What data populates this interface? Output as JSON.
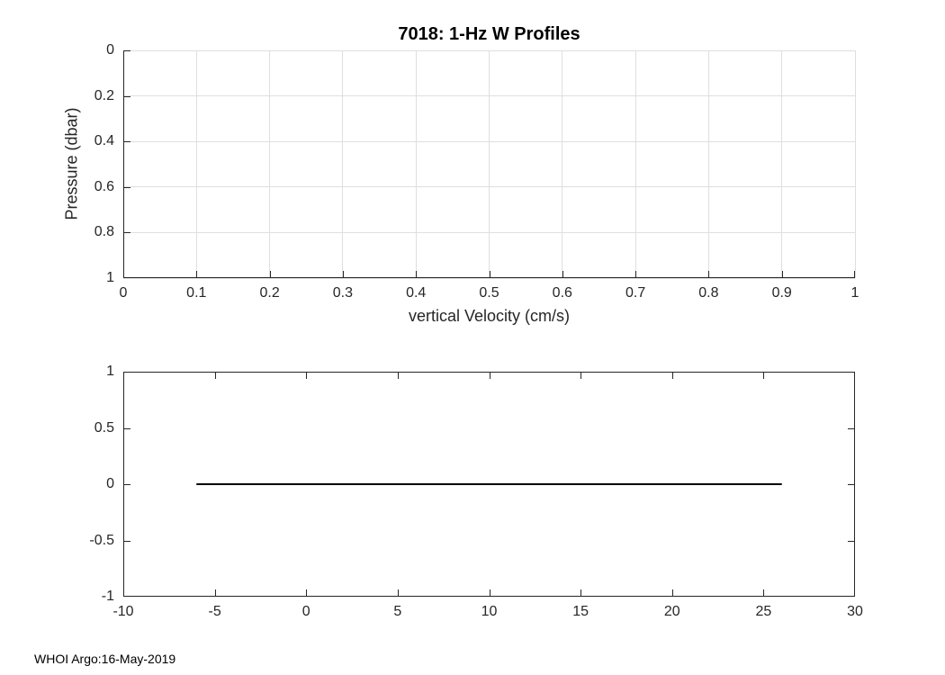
{
  "figure": {
    "credit": "WHOI Argo:16-May-2019",
    "colors": {
      "background": "#ffffff",
      "axis": "#262626",
      "grid": "#dfdfdf",
      "line": "#000000",
      "title": "#000000"
    }
  },
  "chart_data": [
    {
      "type": "line",
      "title": "7018: 1-Hz W Profiles",
      "xlabel": "vertical Velocity (cm/s)",
      "ylabel": "Pressure (dbar)",
      "xlim": [
        0,
        1
      ],
      "ylim": [
        0,
        1
      ],
      "y_axis_reversed": true,
      "x_ticks": [
        0,
        0.1,
        0.2,
        0.3,
        0.4,
        0.5,
        0.6,
        0.7,
        0.8,
        0.9,
        1
      ],
      "y_ticks": [
        0,
        0.2,
        0.4,
        0.6,
        0.8,
        1
      ],
      "grid": true,
      "box": false,
      "legend": null,
      "series": []
    },
    {
      "type": "line",
      "title": "",
      "xlabel": "",
      "ylabel": "",
      "xlim": [
        -10,
        30
      ],
      "ylim": [
        -1,
        1
      ],
      "y_axis_reversed": false,
      "x_ticks": [
        -10,
        -5,
        0,
        5,
        10,
        15,
        20,
        25,
        30
      ],
      "y_ticks": [
        -1,
        -0.5,
        0,
        0.5,
        1
      ],
      "grid": false,
      "box": true,
      "legend": null,
      "series": [
        {
          "name": "w-profile-line",
          "x": [
            -6,
            26
          ],
          "y": [
            0,
            0
          ]
        }
      ]
    }
  ]
}
